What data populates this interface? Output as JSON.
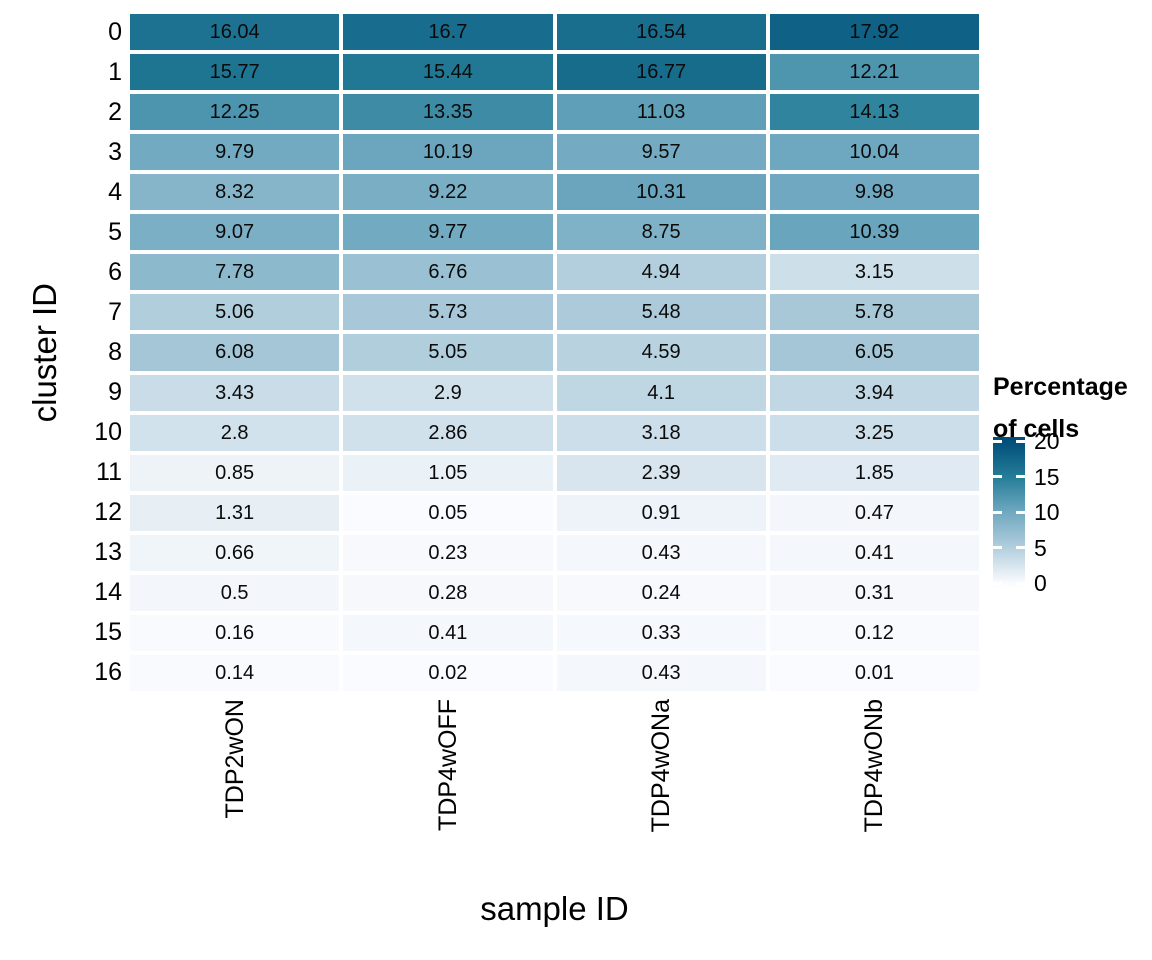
{
  "chart_data": {
    "type": "heatmap",
    "xlabel": "sample ID",
    "ylabel": "cluster ID",
    "categories_x": [
      "TDP2wON",
      "TDP4wOFF",
      "TDP4wONa",
      "TDP4wONb"
    ],
    "categories_y": [
      "0",
      "1",
      "2",
      "3",
      "4",
      "5",
      "6",
      "7",
      "8",
      "9",
      "10",
      "11",
      "12",
      "13",
      "14",
      "15",
      "16"
    ],
    "values": [
      [
        16.04,
        16.7,
        16.54,
        17.92
      ],
      [
        15.77,
        15.44,
        16.77,
        12.21
      ],
      [
        12.25,
        13.35,
        11.03,
        14.13
      ],
      [
        9.79,
        10.19,
        9.57,
        10.04
      ],
      [
        8.32,
        9.22,
        10.31,
        9.98
      ],
      [
        9.07,
        9.77,
        8.75,
        10.39
      ],
      [
        7.78,
        6.76,
        4.94,
        3.15
      ],
      [
        5.06,
        5.73,
        5.48,
        5.78
      ],
      [
        6.08,
        5.05,
        4.59,
        6.05
      ],
      [
        3.43,
        2.9,
        4.1,
        3.94
      ],
      [
        2.8,
        2.86,
        3.18,
        3.25
      ],
      [
        0.85,
        1.05,
        2.39,
        1.85
      ],
      [
        1.31,
        0.05,
        0.91,
        0.47
      ],
      [
        0.66,
        0.23,
        0.43,
        0.41
      ],
      [
        0.5,
        0.28,
        0.24,
        0.31
      ],
      [
        0.16,
        0.41,
        0.33,
        0.12
      ],
      [
        0.14,
        0.02,
        0.43,
        0.01
      ]
    ],
    "value_domain": [
      0,
      20
    ],
    "grid": "off",
    "legend": {
      "position": "right",
      "title_lines": [
        "Percentage",
        "of cells"
      ],
      "ticks": [
        20,
        15,
        10,
        5,
        0
      ],
      "gradient_stops": [
        {
          "value": 0,
          "color": "#fafbfe"
        },
        {
          "value": 5,
          "color": "#b2cedd"
        },
        {
          "value": 10,
          "color": "#6fa8c0"
        },
        {
          "value": 15,
          "color": "#247c97"
        },
        {
          "value": 20,
          "color": "#004e79"
        }
      ]
    },
    "colors": {
      "background": "#ffffff",
      "tile_gap": "#ffffff",
      "text": "#000000"
    }
  }
}
